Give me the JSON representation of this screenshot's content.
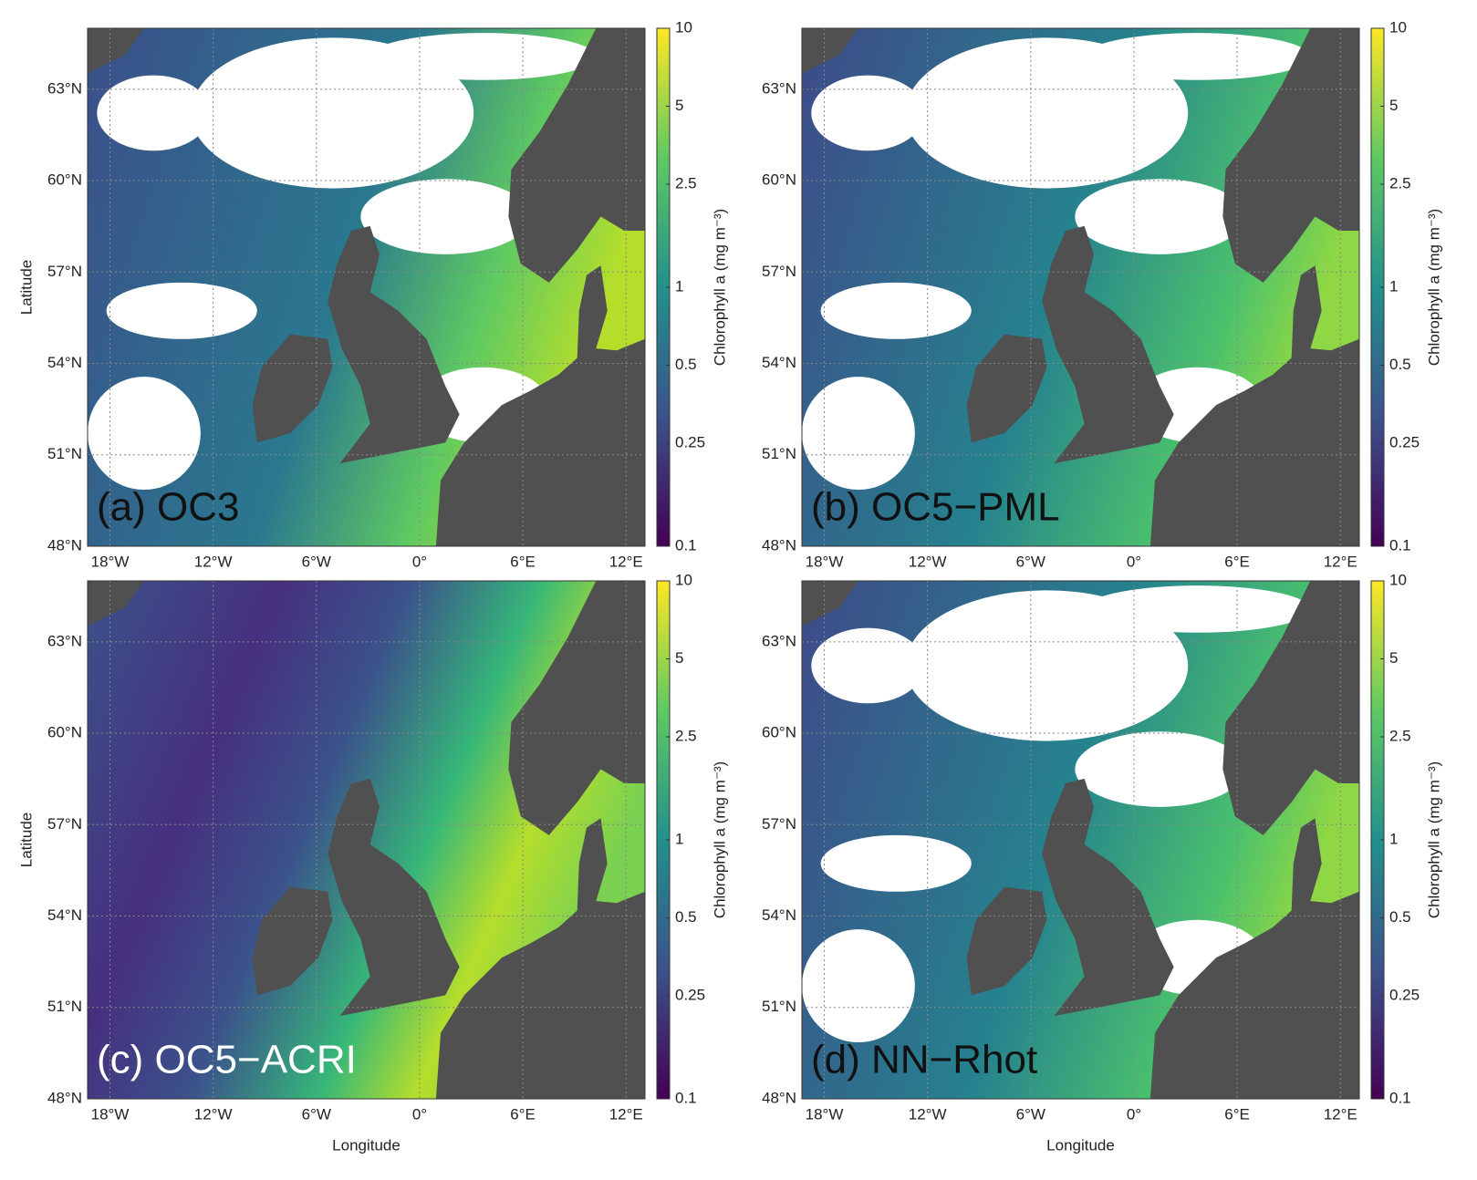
{
  "panels": [
    {
      "label": "(a) OC3",
      "label_color": "#111111",
      "ylabel": "Latitude",
      "colorbar_label": "Chlorophyll a (mg m⁻³)",
      "clouds": true,
      "ocean": "oceanA"
    },
    {
      "label": "(b) OC5−PML",
      "label_color": "#111111",
      "colorbar_label": "Chlorophyll a (mg m⁻³)",
      "clouds": true,
      "ocean": "oceanB"
    },
    {
      "label": "(c) OC5−ACRI",
      "label_color": "#ffffff",
      "ylabel": "Latitude",
      "xlabel": "Longitude",
      "colorbar_label": "Chlorophyll a (mg m⁻³)",
      "clouds": false,
      "ocean": "oceanC"
    },
    {
      "label": "(d) NN−Rhot",
      "label_color": "#111111",
      "xlabel": "Longitude",
      "colorbar_label": "Chlorophyll a (mg m⁻³)",
      "clouds": true,
      "ocean": "oceanB"
    }
  ],
  "xlim": [
    -19.3,
    13.1
  ],
  "ylim": [
    48,
    65
  ],
  "xticks": [
    {
      "value": -18,
      "label": "18°W"
    },
    {
      "value": -12,
      "label": "12°W"
    },
    {
      "value": -6,
      "label": "6°W"
    },
    {
      "value": 0,
      "label": "0°"
    },
    {
      "value": 6,
      "label": "6°E"
    },
    {
      "value": 12,
      "label": "12°E"
    }
  ],
  "yticks": [
    {
      "value": 48,
      "label": "48°N"
    },
    {
      "value": 51,
      "label": "51°N"
    },
    {
      "value": 54,
      "label": "54°N"
    },
    {
      "value": 57,
      "label": "57°N"
    },
    {
      "value": 60,
      "label": "60°N"
    },
    {
      "value": 63,
      "label": "63°N"
    }
  ],
  "grid": true,
  "colorbar": {
    "lim": [
      0.1,
      10
    ],
    "ticks": [
      0.1,
      0.25,
      0.5,
      1,
      2.5,
      5,
      10
    ],
    "log": true
  }
}
